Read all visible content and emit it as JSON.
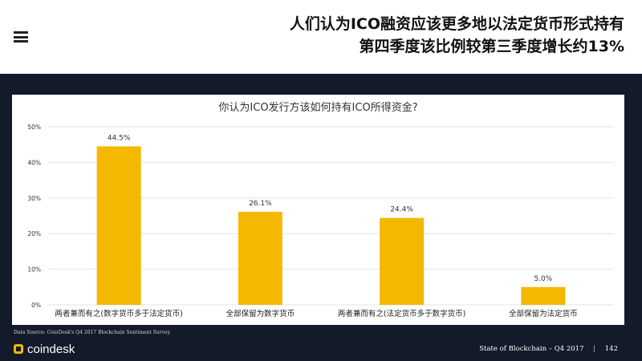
{
  "header": {
    "headline_line1": "人们认为ICO融资应该更多地以法定货币形式持有",
    "headline_line2": "第四季度该比例较第三季度增长约13%"
  },
  "footer": {
    "source": "Data Source: CoinDesk's Q4 2017 Blockchain Sentiment Survey",
    "brand": "coindesk",
    "report": "State of Blockchain – Q4 2017",
    "separator": "|",
    "page": "142"
  },
  "colors": {
    "bar": "#f5b800",
    "background_dark": "#131a2a",
    "panel": "#ffffff"
  },
  "chart_data": {
    "type": "bar",
    "title": "你认为ICO发行方该如何持有ICO所得资金?",
    "categories": [
      "两者兼而有之(数字货币多于法定货币)",
      "全部保留为数字货币",
      "两者兼而有之(法定货币多于数字货币)",
      "全部保留为法定货币"
    ],
    "values": [
      44.5,
      26.1,
      24.4,
      5.0
    ],
    "value_labels": [
      "44.5%",
      "26.1%",
      "24.4%",
      "5.0%"
    ],
    "ylim": [
      0,
      50
    ],
    "yticks": [
      0,
      10,
      20,
      30,
      40,
      50
    ],
    "ytick_labels": [
      "0%",
      "10%",
      "20%",
      "30%",
      "40%",
      "50%"
    ],
    "grid": true,
    "xlabel": "",
    "ylabel": ""
  }
}
